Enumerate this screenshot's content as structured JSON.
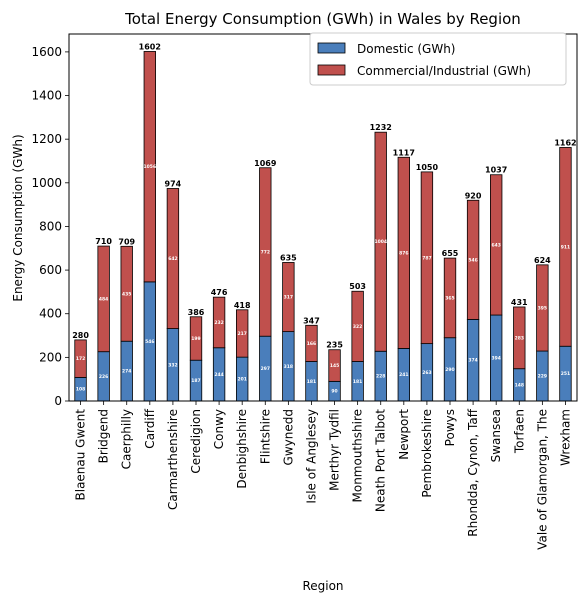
{
  "chart_data": {
    "type": "bar",
    "stacked": true,
    "title": "Total Energy Consumption (GWh) in Wales by Region",
    "xlabel": "Region",
    "ylabel": "Energy Consumption (GWh)",
    "ylim": [
      0,
      1682
    ],
    "yticks": [
      0,
      200,
      400,
      600,
      800,
      1000,
      1200,
      1400,
      1600
    ],
    "legend_position": "top-right",
    "categories": [
      "Blaenau Gwent",
      "Bridgend",
      "Caerphilly",
      "Cardiff",
      "Carmarthenshire",
      "Ceredigion",
      "Conwy",
      "Denbighshire",
      "Flintshire",
      "Gwynedd",
      "Isle of Anglesey",
      "Merthyr Tydfil",
      "Monmouthshire",
      "Neath Port Talbot",
      "Newport",
      "Pembrokeshire",
      "Powys",
      "Rhondda, Cynon, Taff",
      "Swansea",
      "Torfaen",
      "Vale of Glamorgan, The",
      "Wrexham"
    ],
    "series": [
      {
        "name": "Domestic (GWh)",
        "color": "#4a7ebb",
        "values": [
          108,
          226,
          274,
          546,
          332,
          187,
          244,
          201,
          297,
          318,
          181,
          90,
          181,
          228,
          241,
          263,
          290,
          374,
          394,
          148,
          229,
          251
        ]
      },
      {
        "name": "Commercial/Industrial (GWh)",
        "color": "#c0504d",
        "values": [
          172,
          484,
          435,
          1056,
          642,
          199,
          232,
          217,
          772,
          317,
          166,
          145,
          322,
          1004,
          876,
          787,
          365,
          546,
          643,
          283,
          395,
          911
        ]
      }
    ],
    "totals": [
      280,
      710,
      709,
      1602,
      974,
      386,
      476,
      418,
      1069,
      635,
      347,
      235,
      503,
      1232,
      1117,
      1050,
      655,
      920,
      1037,
      431,
      624,
      1162
    ]
  }
}
